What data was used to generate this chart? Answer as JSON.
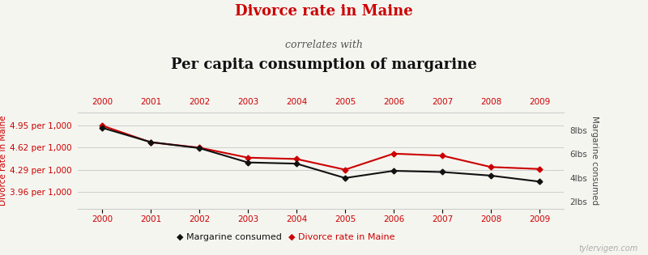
{
  "title_line1": "Divorce rate in Maine",
  "title_line2": "correlates with",
  "title_line3": "Per capita consumption of margarine",
  "years": [
    2000,
    2001,
    2002,
    2003,
    2004,
    2005,
    2006,
    2007,
    2008,
    2009
  ],
  "margarine_lbs": [
    8.2,
    7.0,
    6.5,
    5.3,
    5.2,
    4.0,
    4.6,
    4.5,
    4.2,
    3.7
  ],
  "divorce_rate": [
    4.95,
    4.7,
    4.62,
    4.47,
    4.45,
    4.29,
    4.53,
    4.5,
    4.33,
    4.3
  ],
  "left_ylabel": "Divorce rate in Maine",
  "right_ylabel": "Margarine consumed",
  "left_yticks": [
    3.96,
    4.29,
    4.62,
    4.95
  ],
  "left_ytick_labels": [
    "3.96 per 1,000",
    "4.29 per 1,000",
    "4.62 per 1,000",
    "4.95 per 1,000"
  ],
  "right_yticks": [
    2,
    4,
    6,
    8
  ],
  "right_ytick_labels": [
    "2lbs",
    "4lbs",
    "6lbs",
    "8lbs"
  ],
  "ylim_left": [
    3.7,
    5.15
  ],
  "ylim_right": [
    1.4,
    9.5
  ],
  "margarine_color": "#111111",
  "divorce_color": "#cc0000",
  "title_color1": "#cc0000",
  "title_color2": "#555555",
  "title_color3": "#111111",
  "xlabel_color": "#cc0000",
  "legend_labels": [
    "Margarine consumed",
    "Divorce rate in Maine"
  ],
  "footer_text": "tylervigen.com",
  "background_color": "#f5f5f0"
}
